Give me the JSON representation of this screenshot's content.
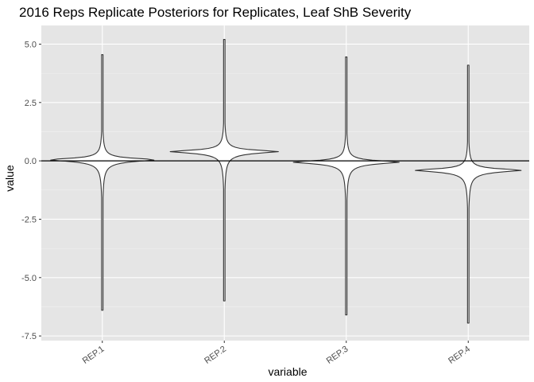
{
  "chart_data": {
    "type": "violin",
    "title": "2016 Reps Replicate Posteriors for Replicates, Leaf ShB Severity",
    "xlabel": "variable",
    "ylabel": "value",
    "categories": [
      "REP.1",
      "REP.2",
      "REP.3",
      "REP.4"
    ],
    "y_ticks": [
      5.0,
      2.5,
      0.0,
      -2.5,
      -5.0,
      -7.5
    ],
    "y_tick_labels": [
      "5.0",
      "2.5",
      "0.0",
      "-2.5",
      "-5.0",
      "-7.5"
    ],
    "ylim": [
      -7.7,
      5.8
    ],
    "reference_line_y": 0,
    "grid": true,
    "violins": [
      {
        "category": "REP.1",
        "min": -6.4,
        "max": 4.55,
        "mode": 0.05,
        "max_half_width": 0.45
      },
      {
        "category": "REP.2",
        "min": -6.0,
        "max": 5.2,
        "mode": 0.4,
        "max_half_width": 0.45
      },
      {
        "category": "REP.3",
        "min": -6.6,
        "max": 4.45,
        "mode": -0.05,
        "max_half_width": 0.45
      },
      {
        "category": "REP.4",
        "min": -6.95,
        "max": 4.1,
        "mode": -0.4,
        "max_half_width": 0.45
      }
    ]
  }
}
